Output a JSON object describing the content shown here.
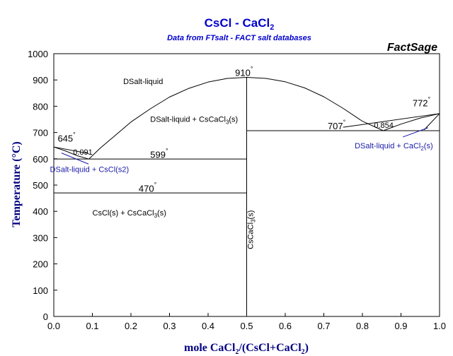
{
  "chart_data": {
    "type": "line",
    "title": "CsCl - CaCl",
    "title_sub": "2",
    "subtitle": "Data from FTsalt - FACT salt databases",
    "brand": "FactSage",
    "xlabel_parts": [
      "mole CaCl",
      "2",
      "/(CsCl+CaCl",
      "2",
      ")"
    ],
    "ylabel": "Temperature (°C)",
    "xlim": [
      0,
      1
    ],
    "ylim": [
      0,
      1000
    ],
    "xticks": [
      0.0,
      0.1,
      0.2,
      0.3,
      0.4,
      0.5,
      0.6,
      0.7,
      0.8,
      0.9,
      1.0
    ],
    "xtick_labels": [
      "0.0",
      "0.1",
      "0.2",
      "0.3",
      "0.4",
      "0.5",
      "0.6",
      "0.7",
      "0.8",
      "0.9",
      "1.0"
    ],
    "yticks": [
      0,
      100,
      200,
      300,
      400,
      500,
      600,
      700,
      800,
      900,
      1000
    ],
    "ytick_labels": [
      "0",
      "100",
      "200",
      "300",
      "400",
      "500",
      "600",
      "700",
      "800",
      "900",
      "1000"
    ],
    "grid": false,
    "series": [
      {
        "points": [
          [
            0.0,
            645
          ],
          [
            0.03,
            630
          ],
          [
            0.06,
            612
          ],
          [
            0.091,
            599
          ]
        ]
      },
      {
        "points": [
          [
            0.091,
            599
          ],
          [
            0.12,
            640
          ],
          [
            0.16,
            690
          ],
          [
            0.2,
            740
          ],
          [
            0.25,
            790
          ],
          [
            0.3,
            835
          ],
          [
            0.35,
            868
          ],
          [
            0.4,
            892
          ],
          [
            0.45,
            906
          ],
          [
            0.5,
            910
          ],
          [
            0.55,
            906
          ],
          [
            0.6,
            893
          ],
          [
            0.65,
            870
          ],
          [
            0.7,
            836
          ],
          [
            0.75,
            792
          ],
          [
            0.8,
            743
          ],
          [
            0.854,
            707
          ]
        ]
      },
      {
        "points": [
          [
            0.854,
            707
          ],
          [
            0.9,
            732
          ],
          [
            0.95,
            755
          ],
          [
            1.0,
            772
          ]
        ]
      }
    ],
    "lines": [
      {
        "points": [
          [
            0.0,
            645
          ],
          [
            0.0,
            0
          ]
        ]
      },
      {
        "points": [
          [
            0.5,
            910
          ],
          [
            0.5,
            0
          ]
        ]
      },
      {
        "points": [
          [
            1.0,
            772
          ],
          [
            1.0,
            0
          ]
        ]
      },
      {
        "points": [
          [
            0.0,
            599
          ],
          [
            0.5,
            599
          ]
        ]
      },
      {
        "points": [
          [
            0.0,
            470
          ],
          [
            0.5,
            470
          ]
        ]
      },
      {
        "points": [
          [
            0.5,
            707
          ],
          [
            1.0,
            707
          ]
        ]
      },
      {
        "points": [
          [
            0.0,
            645
          ],
          [
            0.091,
            620
          ]
        ]
      },
      {
        "points": [
          [
            0.96,
            710
          ],
          [
            1.0,
            772
          ]
        ]
      },
      {
        "points": [
          [
            0.75,
            720
          ],
          [
            1.0,
            772
          ]
        ]
      }
    ],
    "pointers": [
      {
        "from": [
          0.02,
          622
        ],
        "to": [
          0.09,
          580
        ]
      },
      {
        "from": [
          0.905,
          683
        ],
        "to": [
          0.97,
          718
        ]
      }
    ],
    "annotations": [
      {
        "id": "t645",
        "text": "645",
        "deg": true,
        "x": 0.01,
        "y": 665,
        "kind": "temp"
      },
      {
        "id": "t910",
        "text": "910",
        "deg": true,
        "x": 0.47,
        "y": 915,
        "kind": "temp"
      },
      {
        "id": "t772",
        "text": "772",
        "deg": true,
        "x": 0.93,
        "y": 800,
        "kind": "temp"
      },
      {
        "id": "t707",
        "text": "707",
        "deg": true,
        "x": 0.71,
        "y": 712,
        "kind": "temp"
      },
      {
        "id": "t599",
        "text": "599",
        "deg": true,
        "x": 0.25,
        "y": 604,
        "kind": "temp"
      },
      {
        "id": "t470",
        "text": "470",
        "deg": true,
        "x": 0.22,
        "y": 475,
        "kind": "temp"
      },
      {
        "id": "c0091",
        "text": "0.091",
        "deg": false,
        "x": 0.05,
        "y": 615,
        "kind": "label"
      },
      {
        "id": "c0854",
        "text": "0.854",
        "deg": false,
        "x": 0.83,
        "y": 718,
        "kind": "label"
      },
      {
        "id": "r1",
        "text": "DSalt-liquid",
        "deg": false,
        "x": 0.18,
        "y": 885,
        "kind": "label"
      },
      {
        "id": "r2",
        "text": "DSalt-liquid + CsCaCl",
        "sub": "3",
        "suffix": "(s)",
        "x": 0.25,
        "y": 740,
        "kind": "label"
      },
      {
        "id": "r3",
        "text": "DSalt-liquid + CsCl(s2)",
        "deg": false,
        "x": -0.01,
        "y": 550,
        "kind": "label-blue"
      },
      {
        "id": "r4",
        "text": "DSalt-liquid + CaCl",
        "sub": "2",
        "suffix": "(s)",
        "x": 0.78,
        "y": 640,
        "kind": "label-blue"
      },
      {
        "id": "r5",
        "text": "CsCl(s) + CsCaCl",
        "sub": "3",
        "suffix": "(s)",
        "x": 0.1,
        "y": 385,
        "kind": "label"
      }
    ],
    "vertical_label": {
      "text": "CsCaCl",
      "sub": "3",
      "suffix": "(s)",
      "x": 0.5,
      "y": 330
    }
  }
}
